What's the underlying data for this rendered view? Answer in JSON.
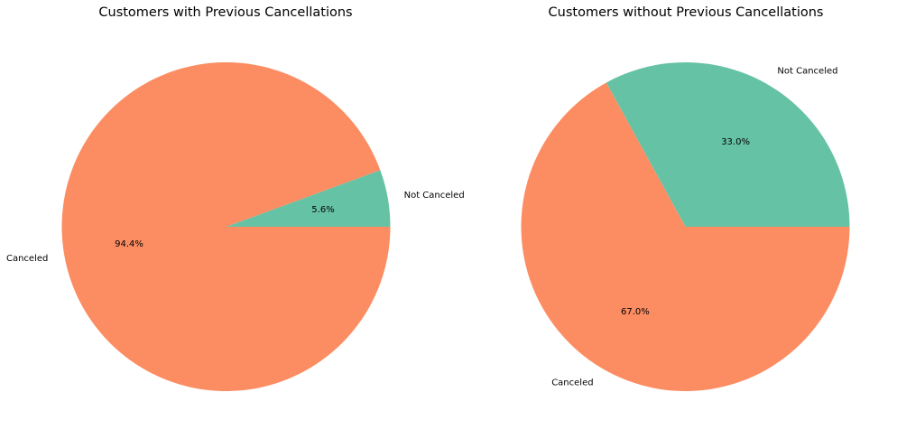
{
  "colors": {
    "not_canceled": "#66c2a5",
    "canceled": "#fc8d62",
    "background": "#ffffff"
  },
  "chart_data": [
    {
      "type": "pie",
      "title": "Customers with Previous Cancellations",
      "start_angle_deg": 0,
      "direction": "counterclockwise",
      "slices": [
        {
          "label": "Not Canceled",
          "value": 5.6,
          "pct_label": "5.6%",
          "color": "#66c2a5"
        },
        {
          "label": "Canceled",
          "value": 94.4,
          "pct_label": "94.4%",
          "color": "#fc8d62"
        }
      ]
    },
    {
      "type": "pie",
      "title": "Customers without Previous Cancellations",
      "start_angle_deg": 0,
      "direction": "counterclockwise",
      "slices": [
        {
          "label": "Not Canceled",
          "value": 33.0,
          "pct_label": "33.0%",
          "color": "#66c2a5"
        },
        {
          "label": "Canceled",
          "value": 67.0,
          "pct_label": "67.0%",
          "color": "#fc8d62"
        }
      ]
    }
  ]
}
